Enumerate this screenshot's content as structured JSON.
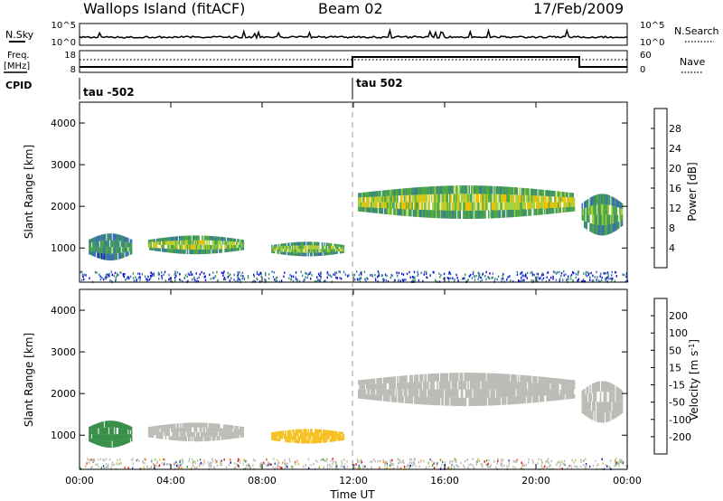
{
  "header": {
    "station": "Wallops Island (fitACF)",
    "beam": "Beam 02",
    "date": "17/Feb/2009"
  },
  "strip": {
    "nsky_label": "N.Sky",
    "nsearch_label": "N.Search",
    "noise_ticks_left": [
      "10^5",
      "10^0"
    ],
    "noise_ticks_right": [
      "10^5",
      "10^0"
    ],
    "freq_label_line1": "Freq.",
    "freq_label_line2": "[MHz]",
    "freq_ticks": [
      "18",
      "8"
    ],
    "nave_label": "Nave",
    "nave_ticks": [
      "60",
      "0"
    ],
    "cpid_label": "CPID",
    "cpid_values": [
      "tau -502",
      "tau 502"
    ]
  },
  "time_axis": {
    "label": "Time UT",
    "ticks": [
      "00:00",
      "04:00",
      "08:00",
      "12:00",
      "16:00",
      "20:00",
      "00:00"
    ]
  },
  "colors": {
    "power": [
      "#1010e0",
      "#3a6fb0",
      "#3c8f6e",
      "#4ea844",
      "#a6d23c",
      "#f0c000",
      "#f08c1c",
      "#e84a20",
      "#e01010"
    ],
    "velocity": [
      "#e01010",
      "#f05a10",
      "#f39a10",
      "#f5c020",
      "#c8c8c0",
      "#74c838",
      "#3a8f4a",
      "#2a4fb0",
      "#1010c0"
    ],
    "ground": "#bcbcb6"
  },
  "chart_data": [
    {
      "type": "heatmap",
      "title": "Power",
      "xlabel": "Time UT",
      "ylabel": "Slant Range [km]",
      "xlim": [
        "00:00",
        "24:00"
      ],
      "ylim": [
        180,
        4500
      ],
      "y_ticks": [
        1000,
        2000,
        3000,
        4000
      ],
      "colorbar": {
        "label": "Power [dB]",
        "range": [
          0,
          32
        ],
        "ticks": [
          4,
          8,
          12,
          16,
          20,
          24,
          28
        ]
      },
      "echo_regions": [
        {
          "t_start": 0.4,
          "t_end": 2.3,
          "range_low_km": 700,
          "range_high_km": 1350,
          "power_db": 10
        },
        {
          "t_start": 3.0,
          "t_end": 7.2,
          "range_low_km": 850,
          "range_high_km": 1300,
          "power_db": 15
        },
        {
          "t_start": 8.4,
          "t_end": 11.6,
          "range_low_km": 800,
          "range_high_km": 1150,
          "power_db": 14
        },
        {
          "t_start": 12.2,
          "t_end": 21.7,
          "range_low_km": 1700,
          "range_high_km": 2500,
          "power_db": 16
        },
        {
          "t_start": 22.0,
          "t_end": 23.8,
          "range_low_km": 1300,
          "range_high_km": 2300,
          "power_db": 13
        }
      ]
    },
    {
      "type": "heatmap",
      "title": "Velocity",
      "xlabel": "Time UT",
      "ylabel": "Slant Range [km]",
      "xlim": [
        "00:00",
        "24:00"
      ],
      "ylim": [
        180,
        4500
      ],
      "y_ticks": [
        1000,
        2000,
        3000,
        4000
      ],
      "colorbar": {
        "label": "Velocity [m s^-1]",
        "ticks": [
          "200",
          "100",
          "50",
          "15",
          "-15",
          "-50",
          "-100",
          "-200"
        ]
      },
      "echo_regions": [
        {
          "t_start": 0.4,
          "t_end": 2.3,
          "range_low_km": 700,
          "range_high_km": 1350,
          "velocity": 60
        },
        {
          "t_start": 3.0,
          "t_end": 7.2,
          "range_low_km": 850,
          "range_high_km": 1300,
          "velocity": 0
        },
        {
          "t_start": 8.4,
          "t_end": 11.6,
          "range_low_km": 800,
          "range_high_km": 1150,
          "velocity": -40
        },
        {
          "t_start": 12.2,
          "t_end": 21.7,
          "range_low_km": 1700,
          "range_high_km": 2500,
          "velocity": 0
        },
        {
          "t_start": 22.0,
          "t_end": 23.8,
          "range_low_km": 1300,
          "range_high_km": 2300,
          "velocity": 0
        }
      ]
    }
  ]
}
